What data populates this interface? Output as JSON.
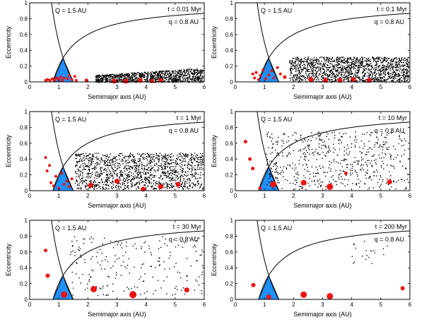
{
  "chart_data": {
    "type": "scatter",
    "description_labels": {
      "xlabel": "Semimajor axis (AU)",
      "ylabel": "Eccentricity",
      "curve_Q_label": "Q = 1.5 AU",
      "curve_q_label": "q = 0.8 AU"
    },
    "axes": {
      "xlim": [
        0,
        6
      ],
      "ylim": [
        0,
        1
      ],
      "xticks": [
        "0",
        "1",
        "2",
        "3",
        "4",
        "5",
        "6"
      ],
      "yticks": [
        "0",
        "0.2",
        "0.4",
        "0.6",
        "0.8",
        "1"
      ]
    },
    "colors": {
      "planetesimal": "#000000",
      "embryo": "#ee1111",
      "triangle": "#1e90ff"
    },
    "panels": [
      {
        "time_label": "t = 0.01 Myr",
        "dots": {
          "count": 1100,
          "amin": 2.25,
          "amax": 5.95,
          "emin": 0.0,
          "emax": 0.18,
          "ramp": true
        },
        "embryos": [
          [
            0.55,
            0.02,
            2
          ],
          [
            0.62,
            0.03,
            2
          ],
          [
            0.7,
            0.02,
            2
          ],
          [
            0.78,
            0.04,
            2
          ],
          [
            0.85,
            0.02,
            2
          ],
          [
            0.92,
            0.05,
            2
          ],
          [
            1.0,
            0.03,
            2
          ],
          [
            1.06,
            0.06,
            2
          ],
          [
            1.12,
            0.02,
            2
          ],
          [
            1.18,
            0.05,
            2
          ],
          [
            1.3,
            0.04,
            2
          ],
          [
            1.36,
            0.08,
            2
          ],
          [
            1.45,
            0.03,
            2
          ],
          [
            1.55,
            0.07,
            2
          ],
          [
            1.6,
            0.02,
            2
          ],
          [
            1.95,
            0.02,
            2.5
          ],
          [
            2.9,
            0.01,
            3.5
          ],
          [
            3.3,
            0.01,
            3.5
          ],
          [
            3.8,
            0.02,
            3.5
          ],
          [
            4.2,
            0.01,
            3
          ],
          [
            4.5,
            0.02,
            3
          ]
        ]
      },
      {
        "time_label": "t = 0.1 Myr",
        "dots": {
          "count": 1500,
          "amin": 1.85,
          "amax": 5.95,
          "emin": 0.0,
          "emax": 0.32,
          "ramp": false
        },
        "embryos": [
          [
            0.6,
            0.1,
            2
          ],
          [
            0.66,
            0.05,
            2
          ],
          [
            0.72,
            0.12,
            2
          ],
          [
            0.8,
            0.03,
            2
          ],
          [
            0.86,
            0.08,
            2
          ],
          [
            0.95,
            0.15,
            2
          ],
          [
            1.05,
            0.04,
            2
          ],
          [
            1.15,
            0.09,
            2
          ],
          [
            1.25,
            0.14,
            2
          ],
          [
            1.32,
            0.05,
            2
          ],
          [
            1.45,
            0.18,
            2
          ],
          [
            1.55,
            0.1,
            2
          ],
          [
            1.7,
            0.06,
            2.5
          ],
          [
            2.6,
            0.03,
            3.5
          ],
          [
            3.1,
            0.02,
            3.5
          ],
          [
            3.6,
            0.02,
            3.5
          ],
          [
            4.05,
            0.03,
            3.5
          ],
          [
            4.6,
            0.02,
            3.5
          ]
        ]
      },
      {
        "time_label": "t = 1 Myr",
        "dots": {
          "count": 1400,
          "amin": 1.55,
          "amax": 5.95,
          "emin": 0.02,
          "emax": 0.48,
          "ramp": false
        },
        "embryos": [
          [
            0.55,
            0.42,
            2
          ],
          [
            0.6,
            0.25,
            2
          ],
          [
            0.68,
            0.32,
            2
          ],
          [
            0.73,
            0.1,
            2
          ],
          [
            0.82,
            0.06,
            2
          ],
          [
            0.9,
            0.18,
            2
          ],
          [
            1.0,
            0.03,
            2
          ],
          [
            1.1,
            0.22,
            2
          ],
          [
            1.18,
            0.08,
            2
          ],
          [
            1.28,
            0.12,
            2
          ],
          [
            1.35,
            0.05,
            2
          ],
          [
            1.45,
            0.15,
            2
          ],
          [
            2.1,
            0.07,
            3.5
          ],
          [
            3.0,
            0.12,
            3.5
          ],
          [
            3.9,
            0.02,
            3.5
          ],
          [
            4.5,
            0.05,
            3.5
          ],
          [
            5.1,
            0.08,
            3.5
          ]
        ]
      },
      {
        "time_label": "t = 10 Myr",
        "dots": {
          "count": 600,
          "amin": 1.05,
          "amax": 5.95,
          "emin": 0.02,
          "emax": 0.75,
          "ramp": false
        },
        "embryos": [
          [
            0.35,
            0.62,
            2.5
          ],
          [
            0.5,
            0.4,
            2.5
          ],
          [
            0.6,
            0.28,
            2.5
          ],
          [
            0.85,
            0.03,
            2.5
          ],
          [
            1.3,
            0.08,
            4.5
          ],
          [
            2.35,
            0.1,
            4
          ],
          [
            3.25,
            0.05,
            4.5
          ],
          [
            3.8,
            0.22,
            2.5
          ],
          [
            5.3,
            0.11,
            3.5
          ]
        ]
      },
      {
        "time_label": "t = 30 Myr",
        "dots": {
          "count": 220,
          "amin": 1.35,
          "amax": 5.95,
          "emin": 0.05,
          "emax": 0.8,
          "ramp": false
        },
        "embryos": [
          [
            0.55,
            0.62,
            2.5
          ],
          [
            0.62,
            0.3,
            3
          ],
          [
            1.18,
            0.06,
            4.5
          ],
          [
            2.2,
            0.13,
            4.5
          ],
          [
            3.55,
            0.06,
            5
          ],
          [
            5.4,
            0.12,
            3.5
          ]
        ]
      },
      {
        "time_label": "t = 200 Myr",
        "dots": {
          "count": 20,
          "amin": 3.9,
          "amax": 5.3,
          "emin": 0.45,
          "emax": 0.75,
          "ramp": false
        },
        "embryos": [
          [
            0.62,
            0.18,
            3
          ],
          [
            1.15,
            0.03,
            3.5
          ],
          [
            2.35,
            0.06,
            4.5
          ],
          [
            3.25,
            0.04,
            4.5
          ],
          [
            5.75,
            0.14,
            3
          ]
        ]
      }
    ]
  }
}
